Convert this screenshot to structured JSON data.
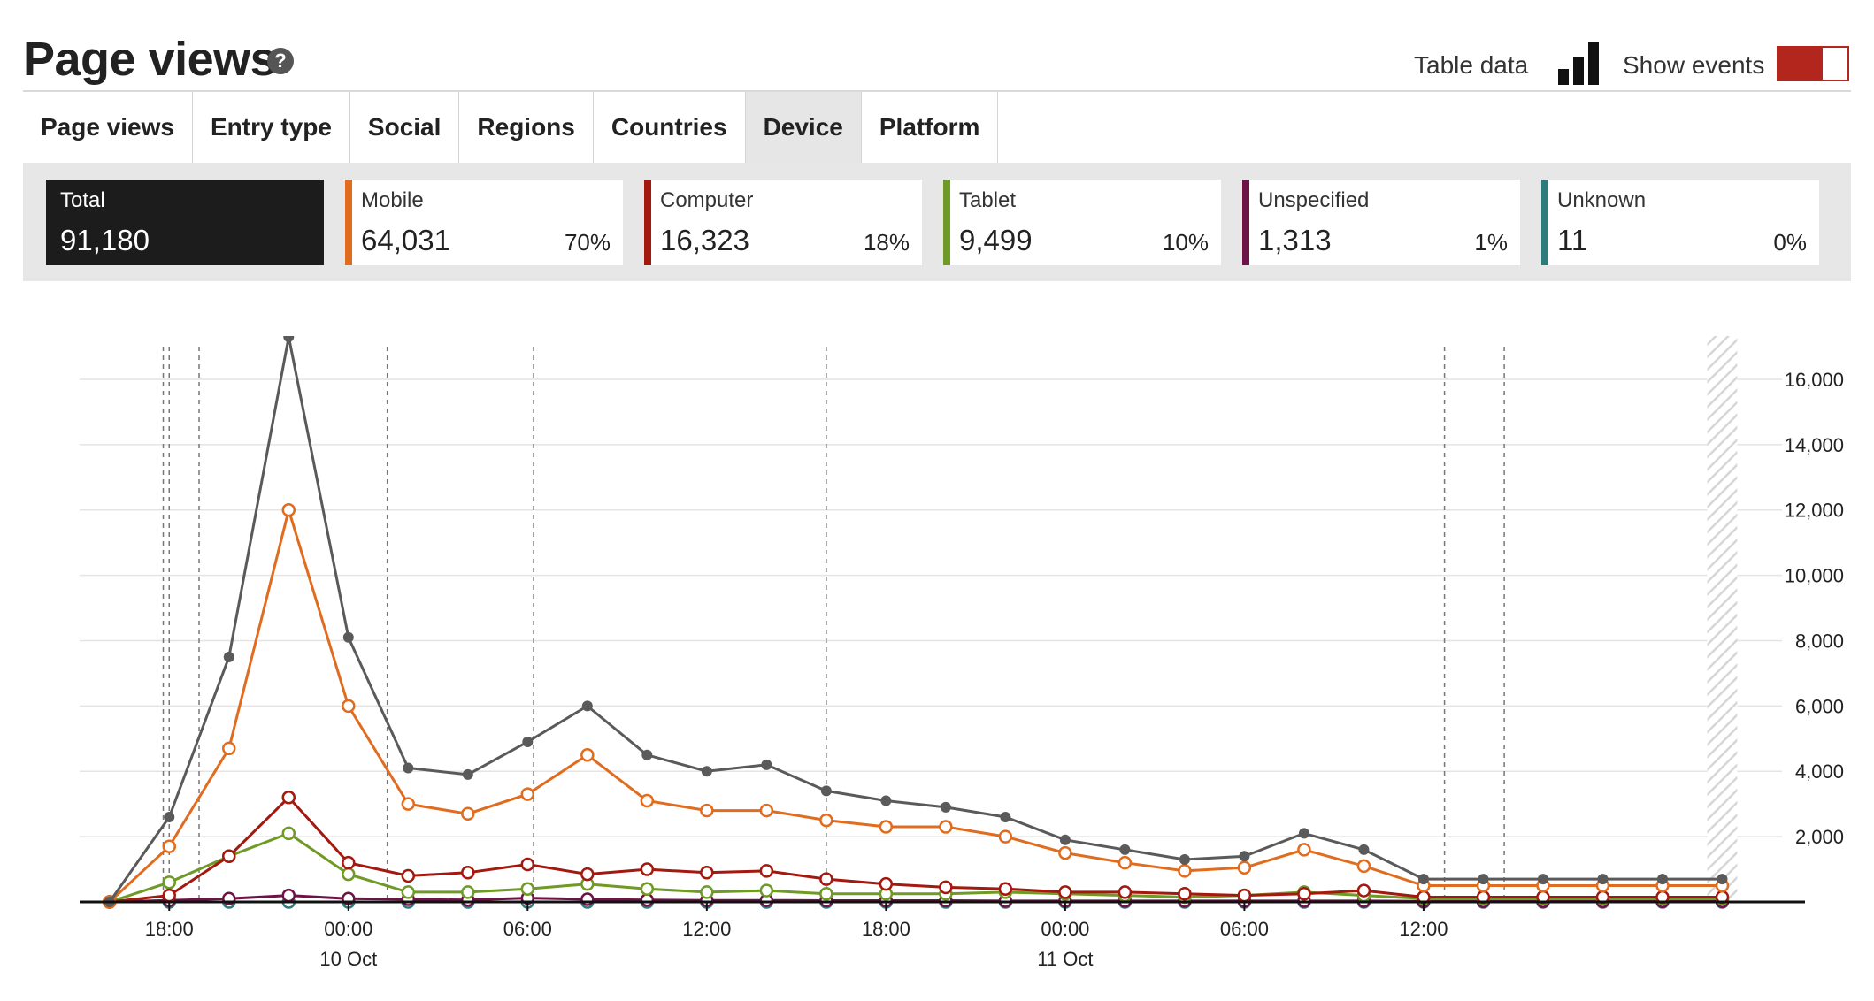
{
  "header": {
    "title": "Page views",
    "help_icon": "?",
    "table_data_label": "Table data",
    "show_events_label": "Show events"
  },
  "tabs": [
    {
      "label": "Page views"
    },
    {
      "label": "Entry type"
    },
    {
      "label": "Social"
    },
    {
      "label": "Regions"
    },
    {
      "label": "Countries"
    },
    {
      "label": "Device",
      "active": true
    },
    {
      "label": "Platform"
    }
  ],
  "cards": [
    {
      "label": "Total",
      "value": "91,180",
      "pct": "",
      "color": "#1c1c1c"
    },
    {
      "label": "Mobile",
      "value": "64,031",
      "pct": "70%",
      "color": "#e06c1f"
    },
    {
      "label": "Computer",
      "value": "16,323",
      "pct": "18%",
      "color": "#a3180f"
    },
    {
      "label": "Tablet",
      "value": "9,499",
      "pct": "10%",
      "color": "#6f9a25"
    },
    {
      "label": "Unspecified",
      "value": "1,313",
      "pct": "1%",
      "color": "#6d1345"
    },
    {
      "label": "Unknown",
      "value": "11",
      "pct": "0%",
      "color": "#2f7b7c"
    }
  ],
  "chart_data": {
    "type": "line",
    "x_unit": "hours",
    "x": [
      -8,
      -6,
      -4,
      -2,
      0,
      2,
      4,
      6,
      8,
      10,
      12,
      14,
      16,
      18,
      20,
      22,
      24,
      26,
      28,
      30,
      32,
      34,
      36,
      38,
      40,
      42,
      44,
      46
    ],
    "x_ticks": [
      {
        "x": -6,
        "label": "18:00",
        "sub": ""
      },
      {
        "x": 0,
        "label": "00:00",
        "sub": "10 Oct"
      },
      {
        "x": 6,
        "label": "06:00",
        "sub": ""
      },
      {
        "x": 12,
        "label": "12:00",
        "sub": ""
      },
      {
        "x": 18,
        "label": "18:00",
        "sub": ""
      },
      {
        "x": 24,
        "label": "00:00",
        "sub": "11 Oct"
      },
      {
        "x": 30,
        "label": "06:00",
        "sub": ""
      },
      {
        "x": 36,
        "label": "12:00",
        "sub": ""
      }
    ],
    "xlim": [
      -9,
      48
    ],
    "ylim": [
      0,
      17000
    ],
    "y_ticks": [
      2000,
      4000,
      6000,
      8000,
      10000,
      12000,
      14000,
      16000
    ],
    "y_tick_labels": [
      "2,000",
      "4,000",
      "6,000",
      "8,000",
      "10,000",
      "12,000",
      "14,000",
      "16,000"
    ],
    "y_axis_position": "right",
    "grid": true,
    "event_markers_x": [
      -6.2,
      -6.0,
      -5.0,
      1.3,
      6.2,
      16.0,
      36.7,
      38.7
    ],
    "incomplete_period_x": [
      45.5,
      46.5
    ],
    "series": [
      {
        "name": "Total",
        "color": "#5a5a5a",
        "marker": "filled",
        "values": [
          0,
          2600,
          7500,
          17300,
          8100,
          4100,
          3900,
          4900,
          6000,
          4500,
          4000,
          4200,
          3400,
          3100,
          2900,
          2600,
          1900,
          1600,
          1300,
          1400,
          2100,
          1600,
          700,
          700,
          700,
          700,
          700,
          700
        ]
      },
      {
        "name": "Mobile",
        "color": "#e06c1f",
        "marker": "open",
        "values": [
          0,
          1700,
          4700,
          12000,
          6000,
          3000,
          2700,
          3300,
          4500,
          3100,
          2800,
          2800,
          2500,
          2300,
          2300,
          2000,
          1500,
          1200,
          950,
          1050,
          1600,
          1100,
          500,
          500,
          500,
          500,
          500,
          500
        ]
      },
      {
        "name": "Computer",
        "color": "#a3180f",
        "marker": "open",
        "values": [
          0,
          200,
          1400,
          3200,
          1200,
          800,
          900,
          1150,
          850,
          1000,
          900,
          950,
          700,
          550,
          450,
          400,
          300,
          300,
          250,
          200,
          250,
          350,
          150,
          150,
          150,
          150,
          150,
          150
        ]
      },
      {
        "name": "Tablet",
        "color": "#6f9a25",
        "marker": "open",
        "values": [
          0,
          600,
          1400,
          2100,
          850,
          300,
          300,
          400,
          550,
          400,
          300,
          350,
          250,
          250,
          250,
          300,
          250,
          200,
          150,
          200,
          300,
          200,
          100,
          100,
          100,
          100,
          100,
          100
        ]
      },
      {
        "name": "Unspecified",
        "color": "#6d1345",
        "marker": "open",
        "values": [
          0,
          50,
          100,
          200,
          100,
          80,
          60,
          120,
          80,
          60,
          50,
          50,
          40,
          40,
          40,
          30,
          30,
          30,
          30,
          30,
          30,
          30,
          20,
          20,
          20,
          20,
          20,
          20
        ]
      },
      {
        "name": "Unknown",
        "color": "#2f7b7c",
        "marker": "open",
        "values": [
          0,
          0,
          0,
          0,
          0,
          0,
          0,
          0,
          0,
          0,
          0,
          0,
          0,
          0,
          0,
          0,
          0,
          0,
          0,
          0,
          0,
          0,
          0,
          0,
          0,
          0,
          0,
          0
        ]
      }
    ]
  }
}
